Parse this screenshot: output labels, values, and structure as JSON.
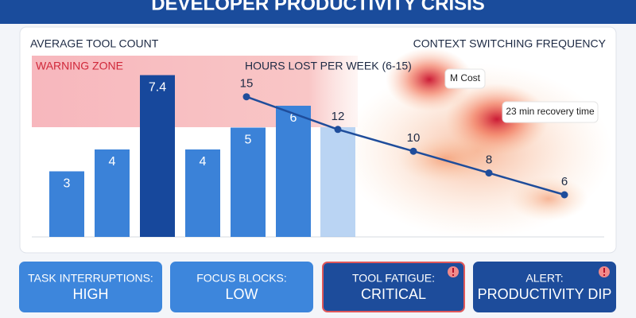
{
  "title": "DEVELOPER PRODUCTIVITY CRISIS",
  "chart_data": {
    "type": "bar",
    "bar_label": "AVERAGE TOOL COUNT",
    "heatmap_label": "CONTEXT SWITCHING FREQUENCY",
    "zone_label": "WARNING ZONE",
    "line_label": "HOURS LOST PER WEEK (6-15)",
    "series": [
      {
        "type": "bar",
        "color": "#3b82d8",
        "highlight": 2,
        "highlight_color": "#17489c",
        "values": [
          3,
          4,
          7.4,
          4,
          5,
          6
        ]
      },
      {
        "type": "line",
        "color": "#1f4d9b",
        "values": [
          15,
          12,
          10,
          8,
          6
        ]
      }
    ],
    "annotations": [
      "M Cost",
      "23 min recovery time"
    ]
  },
  "cards": [
    {
      "label": "TASK INTERRUPTIONS:",
      "value": "HIGH",
      "style": "light"
    },
    {
      "label": "FOCUS BLOCKS:",
      "value": "LOW",
      "style": "light"
    },
    {
      "label": "TOOL FATIGUE:",
      "value": "CRITICAL",
      "style": "critical"
    },
    {
      "label": "ALERT:",
      "value": "PRODUCTIVITY DIP",
      "style": "alert"
    }
  ]
}
